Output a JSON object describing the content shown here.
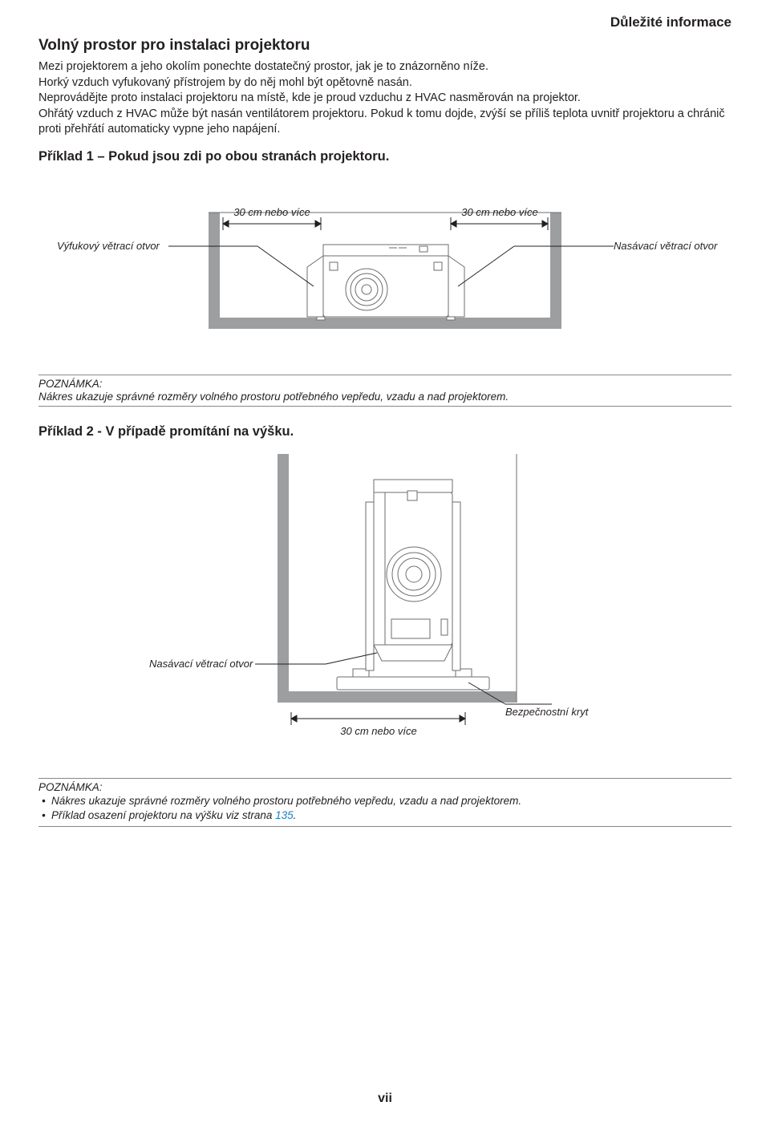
{
  "header": {
    "section_title": "Důležité informace"
  },
  "section1": {
    "heading": "Volný prostor pro instalaci projektoru",
    "body": "Mezi projektorem a jeho okolím ponechte dostatečný prostor, jak je to znázorněno níže.\nHorký vzduch vyfukovaný přístrojem by do něj mohl být opětovně nasán.\nNeprovádějte proto instalaci projektoru na místě, kde je proud vzduchu z HVAC nasměrován na projektor.\nOhřátý vzduch z HVAC může být nasán ventilátorem projektoru. Pokud k tomu dojde, zvýší se příliš teplota uvnitř projektoru a chránič proti přehřátí automaticky vypne jeho napájení."
  },
  "example1": {
    "heading": "Příklad 1 – Pokud jsou zdi po obou stranách projektoru.",
    "dim_left": "30 cm nebo více",
    "dim_right": "30 cm nebo více",
    "label_exhaust": "Výfukový větrací otvor",
    "label_intake": "Nasávací větrací otvor",
    "note_label": "POZNÁMKA:",
    "note_text": "Nákres ukazuje správné rozměry volného prostoru potřebného vepředu, vzadu a nad projektorem."
  },
  "example2": {
    "heading": "Příklad 2 - V případě promítání na výšku.",
    "label_intake": "Nasávací větrací otvor",
    "label_cover": "Bezpečnostní kryt",
    "dim_bottom": "30 cm nebo více",
    "note_label": "POZNÁMKA:",
    "note_item1": "Nákres ukazuje správné rozměry volného prostoru potřebného vepředu, vzadu a nad projektorem.",
    "note_item2_a": "Příklad osazení projektoru na výšku viz strana ",
    "note_item2_page": "135",
    "note_item2_b": "."
  },
  "page": {
    "number": "vii"
  },
  "colors": {
    "text": "#231f20",
    "link": "#1f7db5",
    "rule": "#888888",
    "wall": "#9c9e9f",
    "floor": "#9c9e9f",
    "line": "#231f20",
    "proj_body": "#ffffff",
    "proj_stroke": "#6d6e70"
  }
}
